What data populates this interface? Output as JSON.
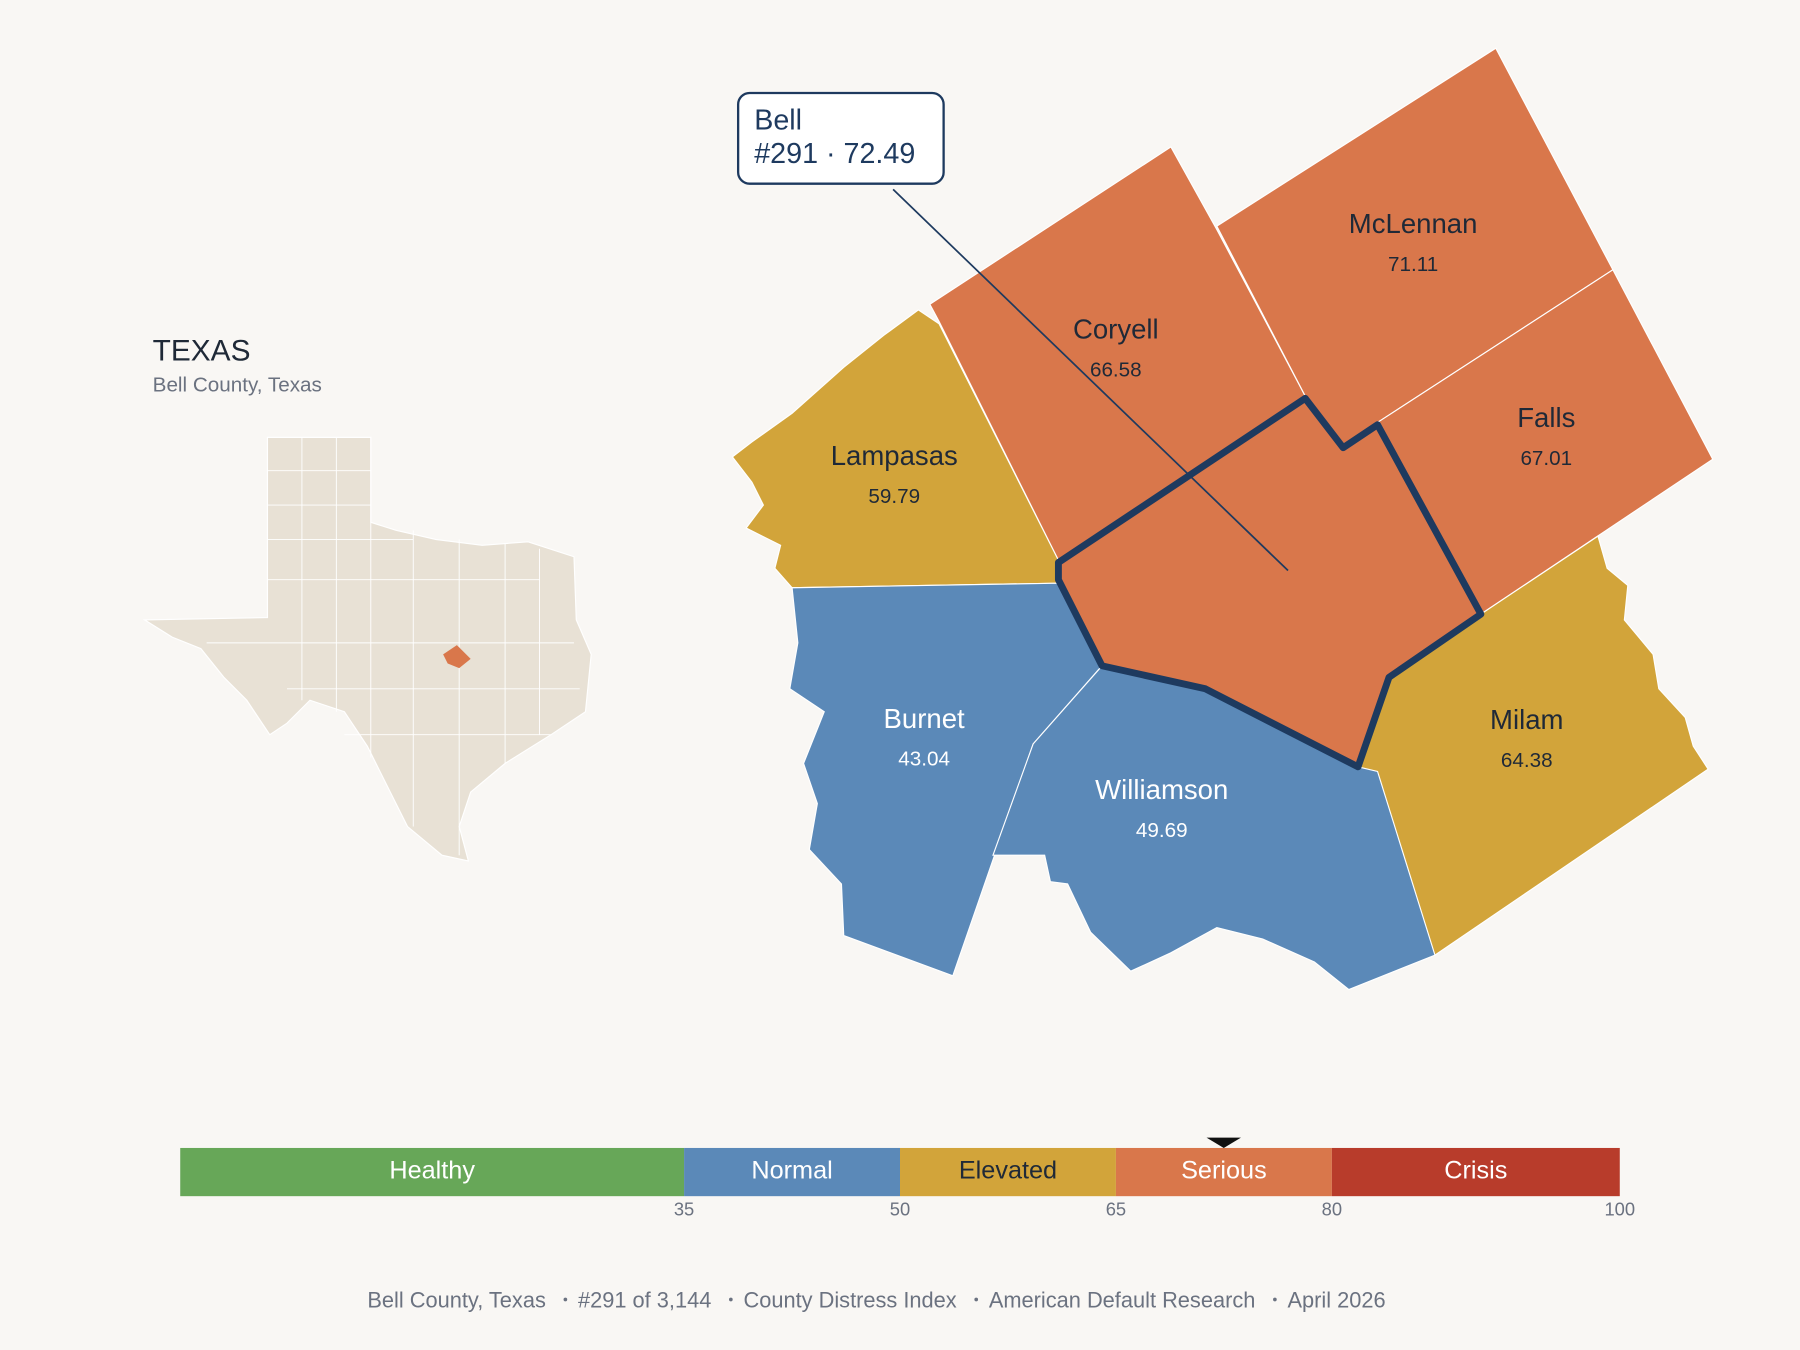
{
  "inset": {
    "title": "TEXAS",
    "subtitle": "Bell County, Texas"
  },
  "selected": {
    "name": "Bell",
    "label": "#291 · 72.49",
    "score": 72.49
  },
  "counties": [
    {
      "name": "Coryell",
      "value": 66.58
    },
    {
      "name": "McLennan",
      "value": 71.11
    },
    {
      "name": "Falls",
      "value": 67.01
    },
    {
      "name": "Lampasas",
      "value": 59.79
    },
    {
      "name": "Milam",
      "value": 64.38
    },
    {
      "name": "Burnet",
      "value": 43.04
    },
    {
      "name": "Williamson",
      "value": 49.69
    }
  ],
  "legend": {
    "range": [
      0,
      100
    ],
    "bands": [
      {
        "label": "Healthy",
        "color": "#67a758",
        "text_color": "#ffffff"
      },
      {
        "label": "Normal",
        "color": "#5b89b8",
        "text_color": "#ffffff"
      },
      {
        "label": "Elevated",
        "color": "#d2a43a",
        "text_color": "#1f2937"
      },
      {
        "label": "Serious",
        "color": "#d9774b",
        "text_color": "#ffffff"
      },
      {
        "label": "Crisis",
        "color": "#b83c2b",
        "text_color": "#ffffff"
      }
    ],
    "ticks": [
      35,
      50,
      65,
      80,
      100
    ]
  },
  "footer": [
    "Bell County, Texas",
    "#291 of 3,144",
    "County Distress Index",
    "American Default Research",
    "April 2026"
  ]
}
